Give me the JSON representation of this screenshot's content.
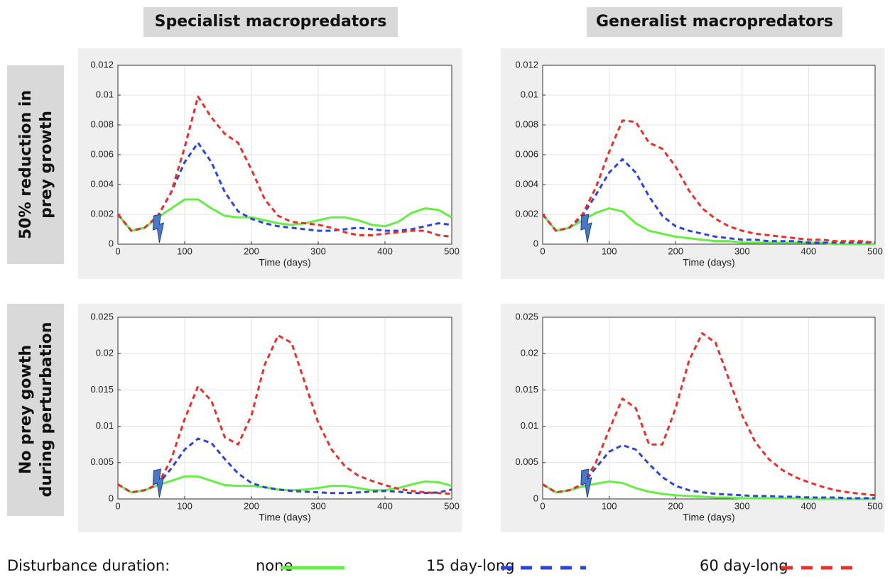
{
  "column_titles": [
    "Specialist macropredators",
    "Generalist macropredators"
  ],
  "row_titles": [
    [
      "50% reduction in",
      "prey growth"
    ],
    [
      "No prey gowth",
      "during perturbation"
    ]
  ],
  "legend": {
    "title": "Disturbance duration:",
    "entries": [
      {
        "name": "none",
        "color": "#66ee44",
        "style": "solid"
      },
      {
        "name": "15 day-long",
        "color": "#2a45dd",
        "style": "dashed"
      },
      {
        "name": "60 day-long",
        "color": "#e8302a",
        "style": "dashed"
      }
    ]
  },
  "chart_data": [
    {
      "type": "line",
      "xlabel": "Time (days)",
      "xlim": [
        0,
        500
      ],
      "xticks": [
        0,
        100,
        200,
        300,
        400,
        500
      ],
      "ylim": [
        0,
        0.012
      ],
      "yticks": [
        0,
        0.002,
        0.004,
        0.006,
        0.008,
        0.01,
        0.012
      ],
      "grid": true,
      "disturbance_day": 60,
      "x": [
        0,
        20,
        40,
        60,
        80,
        100,
        120,
        140,
        160,
        180,
        200,
        220,
        240,
        260,
        280,
        300,
        320,
        340,
        360,
        380,
        400,
        420,
        440,
        460,
        480,
        500
      ],
      "series": [
        {
          "color": "#66ee44",
          "style": "solid",
          "values": [
            0.002,
            0.0009,
            0.0011,
            0.0018,
            0.0024,
            0.003,
            0.003,
            0.0024,
            0.0019,
            0.0018,
            0.0018,
            0.0016,
            0.0014,
            0.0013,
            0.0014,
            0.0016,
            0.0018,
            0.0018,
            0.0016,
            0.0013,
            0.0012,
            0.0015,
            0.0021,
            0.0024,
            0.0023,
            0.0018
          ]
        },
        {
          "color": "#2a45dd",
          "style": "dashed",
          "values": [
            0.002,
            0.0009,
            0.0011,
            0.0019,
            0.0035,
            0.0055,
            0.0068,
            0.0055,
            0.0035,
            0.0022,
            0.0017,
            0.0014,
            0.0012,
            0.0011,
            0.001,
            0.0009,
            0.0009,
            0.001,
            0.0011,
            0.001,
            0.0009,
            0.0009,
            0.001,
            0.0012,
            0.0014,
            0.0013
          ]
        },
        {
          "color": "#e8302a",
          "style": "dashed",
          "values": [
            0.002,
            0.0009,
            0.0011,
            0.0019,
            0.0035,
            0.0065,
            0.0099,
            0.0085,
            0.0074,
            0.0068,
            0.005,
            0.003,
            0.0019,
            0.0015,
            0.0014,
            0.0013,
            0.0011,
            0.0008,
            0.0006,
            0.0006,
            0.0007,
            0.0008,
            0.0009,
            0.0009,
            0.0006,
            0.0005
          ]
        }
      ]
    },
    {
      "type": "line",
      "xlabel": "Time (days)",
      "xlim": [
        0,
        500
      ],
      "xticks": [
        0,
        100,
        200,
        300,
        400,
        500
      ],
      "ylim": [
        0,
        0.012
      ],
      "yticks": [
        0,
        0.002,
        0.004,
        0.006,
        0.008,
        0.01,
        0.012
      ],
      "grid": true,
      "disturbance_day": 65,
      "x": [
        0,
        20,
        40,
        60,
        80,
        100,
        120,
        140,
        160,
        180,
        200,
        220,
        240,
        260,
        280,
        300,
        320,
        340,
        360,
        380,
        400,
        420,
        440,
        460,
        480,
        500
      ],
      "series": [
        {
          "color": "#66ee44",
          "style": "solid",
          "values": [
            0.002,
            0.0009,
            0.0011,
            0.0016,
            0.0021,
            0.0024,
            0.0022,
            0.0014,
            0.0009,
            0.0007,
            0.0005,
            0.0004,
            0.0003,
            0.0002,
            0.0002,
            0.0001,
            0.0001,
            0.0001,
            0.0001,
            0.0001,
            0.0001,
            0.0001,
            0,
            0,
            0,
            0
          ]
        },
        {
          "color": "#2a45dd",
          "style": "dashed",
          "values": [
            0.002,
            0.0009,
            0.0011,
            0.0019,
            0.0033,
            0.0048,
            0.0057,
            0.0048,
            0.0032,
            0.0019,
            0.0012,
            0.0009,
            0.0007,
            0.0005,
            0.0004,
            0.0003,
            0.0003,
            0.0002,
            0.0002,
            0.0002,
            0.0001,
            0.0001,
            0.0001,
            0.0001,
            0.0001,
            0.0001
          ]
        },
        {
          "color": "#e8302a",
          "style": "dashed",
          "values": [
            0.002,
            0.0009,
            0.0011,
            0.002,
            0.0038,
            0.0062,
            0.0083,
            0.0082,
            0.0068,
            0.0064,
            0.0052,
            0.0036,
            0.0024,
            0.0017,
            0.0012,
            0.0009,
            0.0007,
            0.0006,
            0.0005,
            0.0004,
            0.0003,
            0.0003,
            0.0002,
            0.0002,
            0.0002,
            0.0001
          ]
        }
      ]
    },
    {
      "type": "line",
      "xlabel": "Time (days)",
      "xlim": [
        0,
        500
      ],
      "xticks": [
        0,
        100,
        200,
        300,
        400,
        500
      ],
      "ylim": [
        0,
        0.025
      ],
      "yticks": [
        0,
        0.005,
        0.01,
        0.015,
        0.02,
        0.025
      ],
      "grid": true,
      "disturbance_day": 60,
      "x": [
        0,
        20,
        40,
        60,
        80,
        100,
        120,
        140,
        160,
        180,
        200,
        220,
        240,
        260,
        280,
        300,
        320,
        340,
        360,
        380,
        400,
        420,
        440,
        460,
        480,
        500
      ],
      "series": [
        {
          "color": "#66ee44",
          "style": "solid",
          "values": [
            0.002,
            0.0009,
            0.0012,
            0.0019,
            0.0025,
            0.0031,
            0.0031,
            0.0025,
            0.0019,
            0.0018,
            0.0018,
            0.0016,
            0.0013,
            0.0012,
            0.0013,
            0.0015,
            0.0018,
            0.0018,
            0.0015,
            0.0012,
            0.0012,
            0.0015,
            0.002,
            0.0024,
            0.0023,
            0.0018
          ]
        },
        {
          "color": "#2a45dd",
          "style": "dashed",
          "values": [
            0.002,
            0.0009,
            0.0012,
            0.002,
            0.0042,
            0.0068,
            0.0083,
            0.0077,
            0.0055,
            0.0035,
            0.0022,
            0.0016,
            0.0013,
            0.0011,
            0.001,
            0.0009,
            0.0008,
            0.0008,
            0.0009,
            0.001,
            0.0011,
            0.001,
            0.0008,
            0.0008,
            0.0009,
            0.0013
          ]
        },
        {
          "color": "#e8302a",
          "style": "dashed",
          "values": [
            0.002,
            0.0009,
            0.0012,
            0.002,
            0.0055,
            0.011,
            0.0155,
            0.0135,
            0.0085,
            0.0075,
            0.0115,
            0.0185,
            0.0225,
            0.0215,
            0.016,
            0.0105,
            0.0068,
            0.0045,
            0.0032,
            0.0025,
            0.0019,
            0.0014,
            0.0011,
            0.0009,
            0.0008,
            0.0007
          ]
        }
      ]
    },
    {
      "type": "line",
      "xlabel": "Time (days)",
      "xlim": [
        0,
        500
      ],
      "xticks": [
        0,
        100,
        200,
        300,
        400,
        500
      ],
      "ylim": [
        0,
        0.025
      ],
      "yticks": [
        0,
        0.005,
        0.01,
        0.015,
        0.02,
        0.025
      ],
      "grid": true,
      "disturbance_day": 65,
      "x": [
        0,
        20,
        40,
        60,
        80,
        100,
        120,
        140,
        160,
        180,
        200,
        220,
        240,
        260,
        280,
        300,
        320,
        340,
        360,
        380,
        400,
        420,
        440,
        460,
        480,
        500
      ],
      "series": [
        {
          "color": "#66ee44",
          "style": "solid",
          "values": [
            0.002,
            0.0009,
            0.0012,
            0.0017,
            0.0021,
            0.0024,
            0.0022,
            0.0015,
            0.001,
            0.0007,
            0.0005,
            0.0004,
            0.0003,
            0.0002,
            0.0002,
            0.0001,
            0.0001,
            0.0001,
            0.0001,
            0.0001,
            0,
            0,
            0,
            0,
            0,
            0
          ]
        },
        {
          "color": "#2a45dd",
          "style": "dashed",
          "values": [
            0.002,
            0.0009,
            0.0012,
            0.002,
            0.0043,
            0.0065,
            0.0074,
            0.0068,
            0.0048,
            0.003,
            0.0018,
            0.0012,
            0.0009,
            0.0007,
            0.0006,
            0.0005,
            0.0004,
            0.0004,
            0.0003,
            0.0003,
            0.0002,
            0.0002,
            0.0002,
            0.0001,
            0.0001,
            0.0001
          ]
        },
        {
          "color": "#e8302a",
          "style": "dashed",
          "values": [
            0.002,
            0.0009,
            0.0012,
            0.002,
            0.005,
            0.0095,
            0.0138,
            0.0125,
            0.0075,
            0.0075,
            0.0125,
            0.019,
            0.0228,
            0.0215,
            0.0165,
            0.0115,
            0.0078,
            0.0055,
            0.004,
            0.003,
            0.0023,
            0.0017,
            0.0012,
            0.0009,
            0.0007,
            0.0005
          ]
        }
      ]
    }
  ]
}
